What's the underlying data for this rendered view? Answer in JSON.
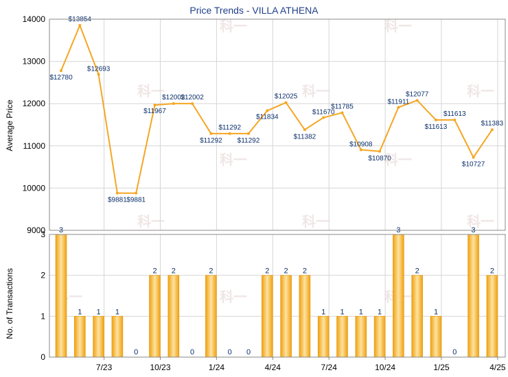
{
  "chart_data": [
    {
      "type": "line",
      "title": "Price Trends - VILLA ATHENA",
      "xlabel": "",
      "ylabel": "Average Price",
      "ylim": [
        9000,
        14000
      ],
      "yticks": [
        9000,
        10000,
        11000,
        12000,
        13000,
        14000
      ],
      "grid": true,
      "color": "#f5a623",
      "values": [
        12780,
        13854,
        12693,
        9881,
        9881,
        11967,
        12002,
        12002,
        11292,
        11292,
        11292,
        11834,
        12025,
        11382,
        11670,
        11785,
        10908,
        10870,
        11911,
        12077,
        11613,
        11613,
        10727,
        11383
      ],
      "labels": [
        "$12780",
        "$13854",
        "$12693",
        "$9881",
        "$9881",
        "$11967",
        "$12002",
        "$12002",
        "$11292",
        "$11292",
        "$11292",
        "$11834",
        "$12025",
        "$11382",
        "$11670",
        "$11785",
        "$10908",
        "$10870",
        "$11911",
        "$12077",
        "$11613",
        "$11613",
        "$10727",
        "$11383"
      ]
    },
    {
      "type": "bar",
      "xlabel": "",
      "ylabel": "No. of Transactions",
      "ylim": [
        0,
        3
      ],
      "yticks": [
        0,
        1,
        2,
        3
      ],
      "grid": true,
      "color": "#f5a623",
      "values": [
        3,
        1,
        1,
        1,
        0,
        2,
        2,
        0,
        2,
        0,
        0,
        2,
        2,
        2,
        1,
        1,
        1,
        1,
        3,
        2,
        1,
        0,
        3,
        2
      ],
      "x_tick_labels": [
        "7/23",
        "10/23",
        "1/24",
        "4/24",
        "7/24",
        "10/24",
        "1/25",
        "4/25"
      ]
    }
  ],
  "watermark": "科一"
}
